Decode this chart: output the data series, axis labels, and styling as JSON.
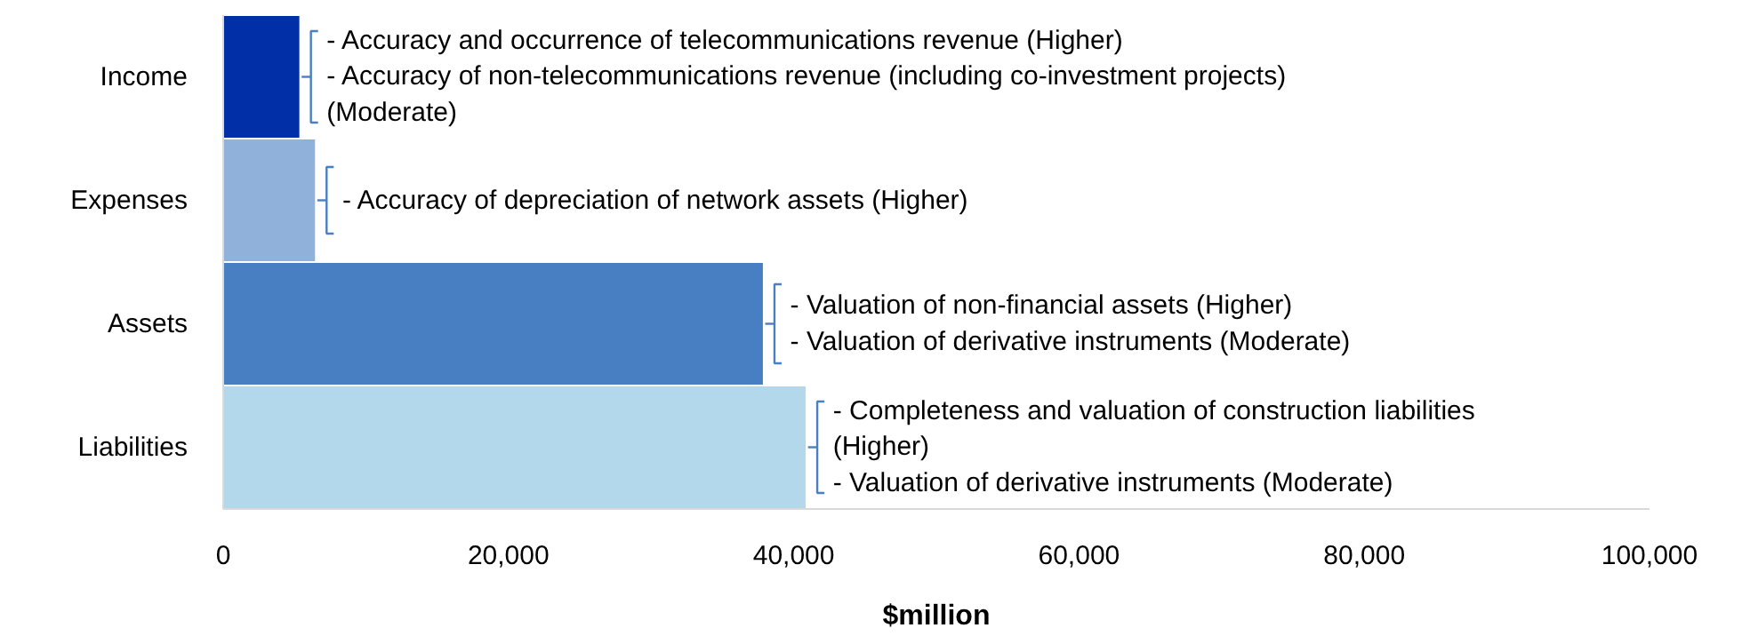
{
  "chart_data": {
    "type": "bar",
    "orientation": "horizontal",
    "xlabel": "$million",
    "categories": [
      "Income",
      "Expenses",
      "Assets",
      "Liabilities"
    ],
    "values": [
      5400,
      6500,
      37900,
      40900
    ],
    "colors": [
      "#002fa7",
      "#8fb1da",
      "#477fc2",
      "#b4d8eb"
    ],
    "xlim": [
      0,
      100000
    ],
    "xticks": [
      {
        "value": 0,
        "label": "0"
      },
      {
        "value": 20000,
        "label": "20,000"
      },
      {
        "value": 40000,
        "label": "40,000"
      },
      {
        "value": 60000,
        "label": "60,000"
      },
      {
        "value": 80000,
        "label": "80,000"
      },
      {
        "value": 100000,
        "label": "100,000"
      }
    ],
    "grid": false,
    "annotations": [
      {
        "text": "- Accuracy and occurrence of telecommunications revenue (Higher)\n- Accuracy of non-telecommunications revenue (including co-investment projects)\n(Moderate)",
        "x": 5400,
        "y": "Income"
      },
      {
        "text": "- Accuracy of depreciation of network assets (Higher)",
        "x": 6500,
        "y": "Expenses"
      },
      {
        "text": "- Valuation of non-financial assets (Higher)\n- Valuation of derivative instruments (Moderate)",
        "x": 37900,
        "y": "Assets"
      },
      {
        "text": "- Completeness and valuation of construction liabilities\n(Higher)\n- Valuation of derivative instruments (Moderate)",
        "x": 40900,
        "y": "Liabilities"
      }
    ]
  }
}
